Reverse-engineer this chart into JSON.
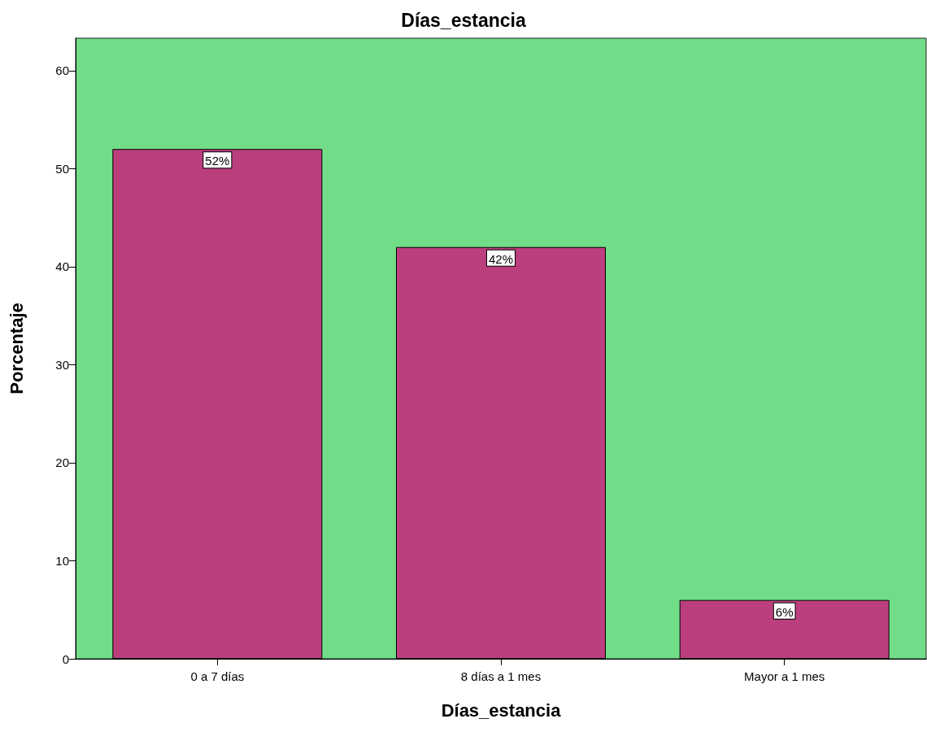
{
  "chart_data": {
    "type": "bar",
    "title": "Días_estancia",
    "xlabel": "Días_estancia",
    "ylabel": "Porcentaje",
    "categories": [
      "0 a 7 días",
      "8 días a 1 mes",
      "Mayor a 1 mes"
    ],
    "values": [
      52,
      42,
      6
    ],
    "value_labels": [
      "52%",
      "42%",
      "6%"
    ],
    "color": "#bb3e7d",
    "ylim": [
      0,
      63.3
    ],
    "yticks": [
      0,
      10,
      20,
      30,
      40,
      50,
      60
    ],
    "grid": false
  }
}
